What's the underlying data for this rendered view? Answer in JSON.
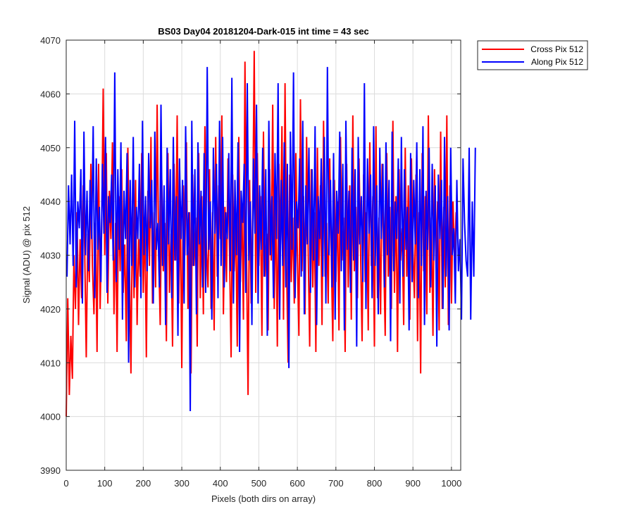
{
  "chart_data": {
    "type": "line",
    "title": "BS03 Day04 20181204-Dark-015 int time = 43 sec",
    "xlabel": "Pixels (both dirs on array)",
    "ylabel": "Signal (ADU) @ pix 512",
    "xlim": [
      0,
      1024
    ],
    "ylim": [
      3990,
      4070
    ],
    "xticks": [
      0,
      100,
      200,
      300,
      400,
      500,
      600,
      700,
      800,
      900,
      1000
    ],
    "yticks": [
      3990,
      4000,
      4010,
      4020,
      4030,
      4040,
      4050,
      4060,
      4070
    ],
    "grid": true,
    "legend_position": "top-right-outside",
    "series": [
      {
        "name": "Cross Pix 512",
        "color": "#ff0000",
        "x_start": 0,
        "x_step": 4,
        "values": [
          4000,
          4022,
          4004,
          4015,
          4007,
          4030,
          4020,
          4038,
          4017,
          4033,
          4022,
          4043,
          4031,
          4011,
          4034,
          4025,
          4047,
          4028,
          4019,
          4036,
          4012,
          4047,
          4020,
          4035,
          4061,
          4030,
          4049,
          4021,
          4042,
          4033,
          4051,
          4019,
          4036,
          4012,
          4041,
          4027,
          4046,
          4023,
          4032,
          4014,
          4050,
          4029,
          4008,
          4039,
          4022,
          4044,
          4017,
          4033,
          4026,
          4049,
          4023,
          4037,
          4011,
          4042,
          4028,
          4052,
          4021,
          4038,
          4024,
          4058,
          4030,
          4017,
          4044,
          4027,
          4036,
          4014,
          4049,
          4023,
          4034,
          4013,
          4047,
          4029,
          4056,
          4021,
          4040,
          4009,
          4043,
          4030,
          4051,
          4020,
          4038,
          4008,
          4045,
          4028,
          4037,
          4013,
          4049,
          4022,
          4041,
          4019,
          4054,
          4031,
          4024,
          4046,
          4020,
          4038,
          4016,
          4052,
          4026,
          4043,
          4033,
          4056,
          4019,
          4039,
          4025,
          4048,
          4030,
          4011,
          4045,
          4027,
          4036,
          4013,
          4052,
          4025,
          4039,
          4018,
          4066,
          4030,
          4004,
          4044,
          4021,
          4037,
          4068,
          4023,
          4049,
          4028,
          4041,
          4015,
          4053,
          4026,
          4034,
          4016,
          4046,
          4029,
          4058,
          4020,
          4040,
          4013,
          4047,
          4032,
          4054,
          4018,
          4062,
          4028,
          4010,
          4045,
          4025,
          4037,
          4021,
          4049,
          4030,
          4015,
          4059,
          4027,
          4041,
          4019,
          4052,
          4031,
          4013,
          4046,
          4024,
          4038,
          4012,
          4050,
          4028,
          4043,
          4017,
          4055,
          4026,
          4036,
          4021,
          4048,
          4030,
          4014,
          4044,
          4025,
          4040,
          4016,
          4052,
          4029,
          4037,
          4012,
          4047,
          4024,
          4043,
          4018,
          4056,
          4027,
          4039,
          4022,
          4048,
          4031,
          4014,
          4045,
          4025,
          4038,
          4016,
          4051,
          4028,
          4041,
          4013,
          4054,
          4022,
          4037,
          4019,
          4047,
          4030,
          4015,
          4049,
          4026,
          4039,
          4020,
          4055,
          4023,
          4041,
          4012,
          4046,
          4029,
          4035,
          4017,
          4050,
          4026,
          4043,
          4018,
          4048,
          4031,
          4022,
          4045,
          4014,
          4038,
          4008,
          4049,
          4027,
          4041,
          4019,
          4056,
          4023,
          4037,
          4015,
          4046,
          4028,
          4040,
          4016,
          4053,
          4020,
          4039,
          4024,
          4056,
          4017,
          4043,
          4021,
          4040,
          4029,
          4038
        ]
      },
      {
        "name": "Along Pix 512",
        "color": "#0000ff",
        "x_start": 2,
        "x_step": 4,
        "values": [
          4026,
          4043,
          4032,
          4045,
          4028,
          4055,
          4024,
          4040,
          4035,
          4046,
          4021,
          4053,
          4030,
          4042,
          4027,
          4044,
          4033,
          4054,
          4022,
          4048,
          4031,
          4039,
          4025,
          4047,
          4034,
          4052,
          4023,
          4041,
          4036,
          4045,
          4029,
          4064,
          4025,
          4046,
          4031,
          4051,
          4018,
          4042,
          4033,
          4049,
          4010,
          4044,
          4028,
          4052,
          4024,
          4039,
          4033,
          4047,
          4022,
          4055,
          4030,
          4041,
          4027,
          4049,
          4035,
          4044,
          4021,
          4053,
          4031,
          4036,
          4024,
          4058,
          4028,
          4043,
          4017,
          4050,
          4032,
          4046,
          4022,
          4052,
          4029,
          4041,
          4015,
          4048,
          4033,
          4044,
          4021,
          4054,
          4030,
          4038,
          4001,
          4055,
          4028,
          4046,
          4019,
          4051,
          4032,
          4042,
          4024,
          4049,
          4023,
          4065,
          4031,
          4040,
          4018,
          4050,
          4034,
          4047,
          4022,
          4055,
          4028,
          4052,
          4024,
          4038,
          4033,
          4049,
          4027,
          4063,
          4021,
          4044,
          4030,
          4051,
          4012,
          4042,
          4036,
          4047,
          4023,
          4062,
          4029,
          4040,
          4017,
          4048,
          4034,
          4058,
          4021,
          4043,
          4031,
          4050,
          4026,
          4046,
          4015,
          4055,
          4030,
          4041,
          4022,
          4049,
          4033,
          4062,
          4018,
          4044,
          4028,
          4051,
          4024,
          4047,
          4009,
          4053,
          4031,
          4064,
          4022,
          4040,
          4035,
          4048,
          4026,
          4055,
          4019,
          4043,
          4032,
          4050,
          4023,
          4046,
          4029,
          4054,
          4017,
          4041,
          4033,
          4048,
          4026,
          4052,
          4021,
          4065,
          4030,
          4044,
          4024,
          4049,
          4018,
          4042,
          4034,
          4053,
          4027,
          4047,
          4016,
          4055,
          4031,
          4042,
          4023,
          4050,
          4029,
          4046,
          4013,
          4052,
          4032,
          4041,
          4025,
          4062,
          4020,
          4048,
          4034,
          4045,
          4022,
          4054,
          4028,
          4043,
          4019,
          4050,
          4033,
          4047,
          4024,
          4051,
          4030,
          4044,
          4014,
          4053,
          4027,
          4040,
          4033,
          4048,
          4021,
          4052,
          4026,
          4046,
          4031,
          4039,
          4016,
          4049,
          4025,
          4044,
          4032,
          4051,
          4022,
          4046,
          4028,
          4054,
          4017,
          4042,
          4031,
          4050,
          4024,
          4047,
          4029,
          4043,
          4013,
          4045,
          4033,
          4044,
          4020,
          4052,
          4026,
          4041,
          4016,
          4050,
          4030,
          4035,
          4021,
          4044,
          4027,
          4033,
          4018,
          4048,
          4036,
          4029,
          4026,
          4050,
          4018,
          4040,
          4026,
          4050
        ]
      }
    ]
  }
}
